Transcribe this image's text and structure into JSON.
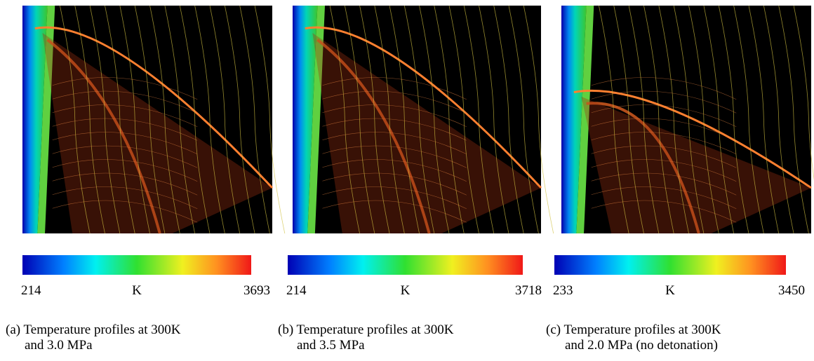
{
  "panels": [
    {
      "colorbar": {
        "min": 214,
        "unit": "K",
        "max": 3693
      },
      "caption": [
        "(a) Temperature profiles at 300K",
        "and 3.0 MPa"
      ]
    },
    {
      "colorbar": {
        "min": 214,
        "unit": "K",
        "max": 3718
      },
      "caption": [
        "(b) Temperature profiles at 300K",
        "and 3.5 MPa"
      ]
    },
    {
      "colorbar": {
        "min": 233,
        "unit": "K",
        "max": 3450
      },
      "caption": [
        "(c) Temperature profiles at 300K",
        "and 2.0 MPa (no detonation)"
      ]
    }
  ]
}
